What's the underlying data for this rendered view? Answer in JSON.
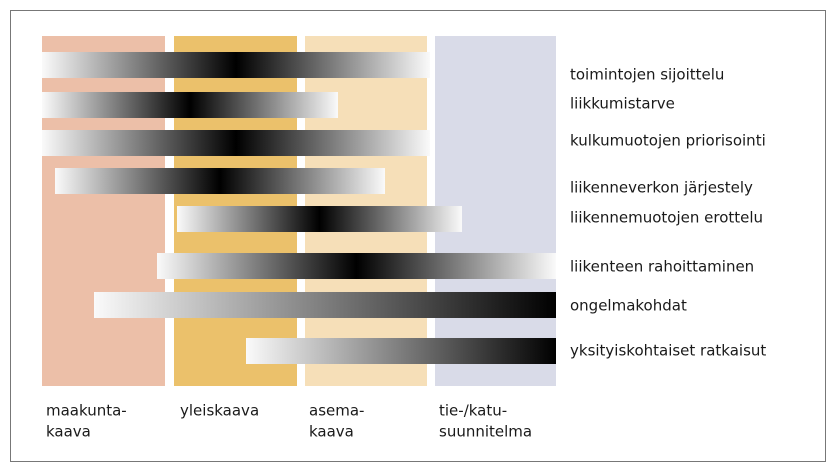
{
  "rows": [
    "toimintojen sijoittelu",
    "liikkumistarve",
    "kulkumuotojen priorisointi",
    "liikenneverkon järjestely",
    "liikennemuotojen erottelu",
    "liikenteen rahoittaminen",
    "ongelmakohdat",
    "yksityiskohtaiset ratkaisut"
  ],
  "columns": [
    [
      "maakunta-",
      "kaava"
    ],
    [
      "yleiskaava"
    ],
    [
      "asema-",
      "kaava"
    ],
    [
      "tie-/katu-",
      "suunnitelma"
    ]
  ]
}
